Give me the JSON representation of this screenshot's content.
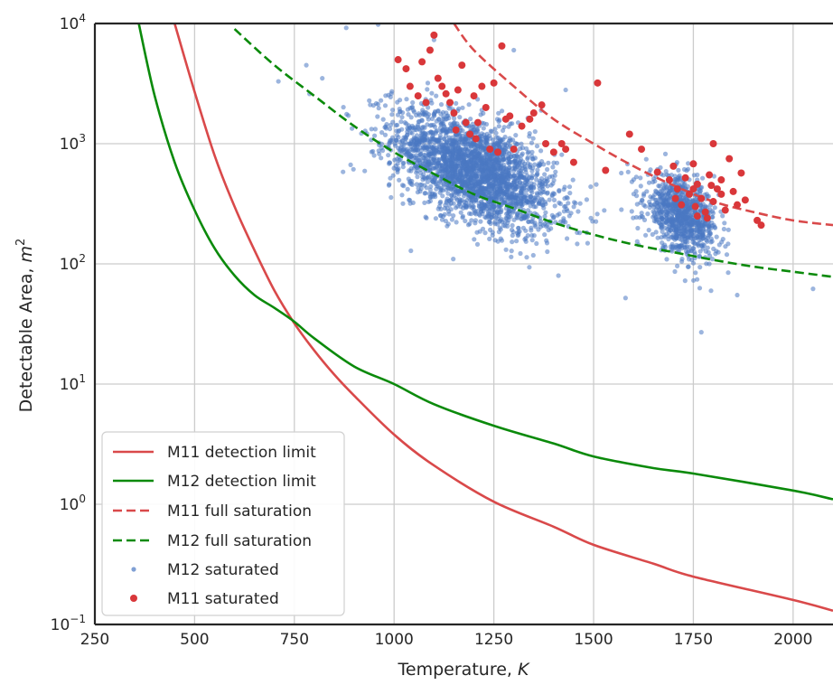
{
  "chart_data": {
    "type": "scatter",
    "xlabel": "Temperature, ",
    "xlabel_var": "K",
    "ylabel": "Detectable Area, ",
    "ylabel_var": "m",
    "ylabel_exp": "2",
    "xlim": [
      250,
      2100
    ],
    "ylim": [
      0.1,
      10000
    ],
    "y_scale": "log",
    "grid": true,
    "legend_position": "lower-left",
    "x_ticks": [
      250,
      500,
      750,
      1000,
      1250,
      1500,
      1750,
      2000
    ],
    "x_tick_labels": [
      "250",
      "500",
      "750",
      "1000",
      "1250",
      "1500",
      "1750",
      "2000"
    ],
    "y_ticks": [
      0.1,
      1,
      10,
      100,
      1000,
      10000
    ],
    "y_tick_labels": [
      {
        "base": "10",
        "exp": "−1"
      },
      {
        "base": "10",
        "exp": "0"
      },
      {
        "base": "10",
        "exp": "1"
      },
      {
        "base": "10",
        "exp": "2"
      },
      {
        "base": "10",
        "exp": "3"
      },
      {
        "base": "10",
        "exp": "4"
      }
    ],
    "series": [
      {
        "name": "M11 detection limit",
        "kind": "line",
        "style": "solid",
        "color": "#d9494a",
        "points": [
          [
            450,
            10000
          ],
          [
            500,
            2700
          ],
          [
            550,
            800
          ],
          [
            600,
            300
          ],
          [
            650,
            130
          ],
          [
            700,
            60
          ],
          [
            750,
            32
          ],
          [
            800,
            19
          ],
          [
            850,
            12
          ],
          [
            900,
            8
          ],
          [
            1000,
            3.8
          ],
          [
            1100,
            2.1
          ],
          [
            1250,
            1.05
          ],
          [
            1400,
            0.65
          ],
          [
            1500,
            0.46
          ],
          [
            1650,
            0.32
          ],
          [
            1750,
            0.25
          ],
          [
            2000,
            0.16
          ],
          [
            2100,
            0.13
          ]
        ]
      },
      {
        "name": "M12 detection limit",
        "kind": "line",
        "style": "solid",
        "color": "#0b8a0b",
        "points": [
          [
            360,
            10000
          ],
          [
            400,
            2500
          ],
          [
            450,
            700
          ],
          [
            500,
            280
          ],
          [
            550,
            135
          ],
          [
            600,
            80
          ],
          [
            650,
            55
          ],
          [
            700,
            43
          ],
          [
            750,
            33
          ],
          [
            800,
            24
          ],
          [
            900,
            14
          ],
          [
            1000,
            10
          ],
          [
            1100,
            6.8
          ],
          [
            1250,
            4.5
          ],
          [
            1400,
            3.2
          ],
          [
            1500,
            2.5
          ],
          [
            1650,
            2.0
          ],
          [
            1750,
            1.8
          ],
          [
            2000,
            1.3
          ],
          [
            2100,
            1.1
          ]
        ]
      },
      {
        "name": "M11 full saturation",
        "kind": "line",
        "style": "dashed",
        "color": "#d9494a",
        "points": [
          [
            1150,
            10000
          ],
          [
            1200,
            6000
          ],
          [
            1300,
            3000
          ],
          [
            1400,
            1600
          ],
          [
            1500,
            1000
          ],
          [
            1600,
            650
          ],
          [
            1700,
            450
          ],
          [
            1800,
            330
          ],
          [
            1900,
            270
          ],
          [
            2000,
            230
          ],
          [
            2100,
            210
          ]
        ]
      },
      {
        "name": "M12 full saturation",
        "kind": "line",
        "style": "dashed",
        "color": "#0b8a0b",
        "points": [
          [
            600,
            9000
          ],
          [
            700,
            4500
          ],
          [
            800,
            2500
          ],
          [
            900,
            1400
          ],
          [
            1000,
            850
          ],
          [
            1100,
            560
          ],
          [
            1200,
            380
          ],
          [
            1300,
            290
          ],
          [
            1400,
            220
          ],
          [
            1500,
            175
          ],
          [
            1600,
            145
          ],
          [
            1700,
            125
          ],
          [
            1800,
            108
          ],
          [
            1900,
            95
          ],
          [
            2000,
            86
          ],
          [
            2100,
            78
          ]
        ]
      },
      {
        "name": "M12 saturated",
        "kind": "scatter",
        "color": "#4a78c2",
        "marker": "dot-small",
        "clusters": [
          {
            "x_center": 1200,
            "x_spread": 170,
            "y_center_log": 2.78,
            "y_spread_log": 0.38,
            "n": 2600
          },
          {
            "x_center": 1720,
            "x_spread": 75,
            "y_center_log": 2.4,
            "y_spread_log": 0.28,
            "n": 900
          }
        ],
        "points": [
          [
            710,
            3300
          ],
          [
            780,
            4500
          ],
          [
            820,
            3500
          ],
          [
            880,
            9200
          ],
          [
            960,
            9800
          ],
          [
            1100,
            7300
          ],
          [
            1300,
            6000
          ],
          [
            1430,
            2800
          ],
          [
            1580,
            52
          ],
          [
            1860,
            55
          ],
          [
            1770,
            27
          ],
          [
            2050,
            62
          ]
        ]
      },
      {
        "name": "M11 saturated",
        "kind": "scatter",
        "color": "#d9373a",
        "marker": "dot-large",
        "points": [
          [
            1010,
            5000
          ],
          [
            1030,
            4200
          ],
          [
            1040,
            3000
          ],
          [
            1060,
            2500
          ],
          [
            1070,
            4800
          ],
          [
            1080,
            2200
          ],
          [
            1090,
            6000
          ],
          [
            1100,
            8000
          ],
          [
            1110,
            3500
          ],
          [
            1120,
            3000
          ],
          [
            1130,
            2600
          ],
          [
            1140,
            2200
          ],
          [
            1150,
            1800
          ],
          [
            1155,
            1300
          ],
          [
            1160,
            2800
          ],
          [
            1170,
            4500
          ],
          [
            1180,
            1500
          ],
          [
            1190,
            1200
          ],
          [
            1200,
            2500
          ],
          [
            1205,
            1100
          ],
          [
            1210,
            1500
          ],
          [
            1220,
            3000
          ],
          [
            1230,
            2000
          ],
          [
            1240,
            900
          ],
          [
            1250,
            3200
          ],
          [
            1260,
            850
          ],
          [
            1270,
            6500
          ],
          [
            1280,
            1600
          ],
          [
            1290,
            1700
          ],
          [
            1300,
            900
          ],
          [
            1320,
            1400
          ],
          [
            1340,
            1600
          ],
          [
            1350,
            1800
          ],
          [
            1370,
            2100
          ],
          [
            1380,
            1000
          ],
          [
            1400,
            850
          ],
          [
            1420,
            1000
          ],
          [
            1430,
            900
          ],
          [
            1450,
            700
          ],
          [
            1510,
            3200
          ],
          [
            1530,
            600
          ],
          [
            1590,
            1200
          ],
          [
            1620,
            900
          ],
          [
            1660,
            580
          ],
          [
            1690,
            500
          ],
          [
            1700,
            650
          ],
          [
            1705,
            350
          ],
          [
            1710,
            420
          ],
          [
            1720,
            310
          ],
          [
            1730,
            520
          ],
          [
            1740,
            380
          ],
          [
            1750,
            680
          ],
          [
            1755,
            300
          ],
          [
            1760,
            460
          ],
          [
            1770,
            350
          ],
          [
            1780,
            270
          ],
          [
            1790,
            550
          ],
          [
            1800,
            1000
          ],
          [
            1800,
            330
          ],
          [
            1810,
            420
          ],
          [
            1820,
            380
          ],
          [
            1830,
            280
          ],
          [
            1840,
            750
          ],
          [
            1850,
            400
          ],
          [
            1860,
            310
          ],
          [
            1870,
            570
          ],
          [
            1880,
            340
          ],
          [
            1910,
            230
          ],
          [
            1920,
            210
          ],
          [
            1760,
            250
          ],
          [
            1785,
            240
          ],
          [
            1820,
            500
          ],
          [
            1795,
            450
          ],
          [
            1750,
            420
          ]
        ]
      }
    ]
  }
}
